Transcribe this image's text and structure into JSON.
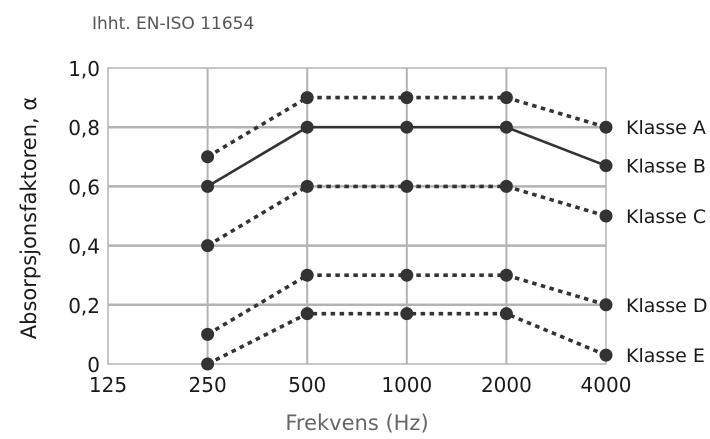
{
  "chart_data": {
    "type": "line",
    "subtitle": "Ihht. EN-ISO 11654",
    "xlabel": "Frekvens (Hz)",
    "ylabel": "Absorpsjonsfaktoren, α",
    "categories": [
      "125",
      "250",
      "500",
      "1000",
      "2000",
      "4000"
    ],
    "ylim": [
      0,
      1.0
    ],
    "yticks": [
      0,
      0.2,
      0.4,
      0.6,
      0.8,
      1.0
    ],
    "ytick_labels": [
      "0",
      "0,2",
      "0,4",
      "0,6",
      "0,8",
      "1,0"
    ],
    "grid": true,
    "grid_color": "#b3b3b3",
    "series_color": "#333333",
    "series": [
      {
        "name": "Klasse A",
        "style": "dotted",
        "values": [
          null,
          0.7,
          0.9,
          0.9,
          0.9,
          0.8
        ]
      },
      {
        "name": "Klasse B",
        "style": "solid",
        "values": [
          null,
          0.6,
          0.8,
          0.8,
          0.8,
          0.67
        ]
      },
      {
        "name": "Klasse C",
        "style": "dotted",
        "values": [
          null,
          0.4,
          0.6,
          0.6,
          0.6,
          0.5
        ]
      },
      {
        "name": "Klasse D",
        "style": "dotted",
        "values": [
          null,
          0.1,
          0.3,
          0.3,
          0.3,
          0.2
        ]
      },
      {
        "name": "Klasse E",
        "style": "dotted",
        "values": [
          null,
          0.0,
          0.17,
          0.17,
          0.17,
          0.03
        ]
      }
    ]
  }
}
